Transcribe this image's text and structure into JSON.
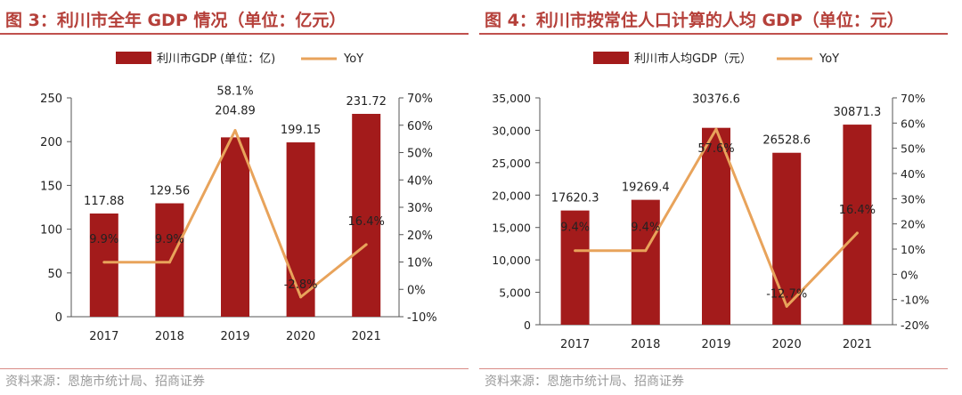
{
  "colors": {
    "bar": "#a31b1b",
    "line": "#e8a35b",
    "title": "#b5403a",
    "axis": "#333333"
  },
  "chart_data": [
    {
      "type": "bar",
      "figure_title": "图 3：利川市全年 GDP 情况（单位：亿元）",
      "legend": {
        "bar": "利川市GDP (单位：亿)",
        "line": "YoY",
        "position": "top-center"
      },
      "categories": [
        "2017",
        "2018",
        "2019",
        "2020",
        "2021"
      ],
      "series": [
        {
          "name": "利川市GDP (单位：亿)",
          "kind": "bar",
          "axis": "left",
          "values": [
            117.88,
            129.56,
            204.89,
            199.15,
            231.72
          ],
          "labels": [
            "117.88",
            "129.56",
            "204.89",
            "199.15",
            "231.72"
          ]
        },
        {
          "name": "YoY",
          "kind": "line",
          "axis": "right",
          "values": [
            9.9,
            9.9,
            58.1,
            -2.8,
            16.4
          ],
          "labels": [
            "9.9%",
            "9.9%",
            "58.1%",
            "-2.8%",
            "16.4%"
          ]
        }
      ],
      "y_left": {
        "min": 0,
        "max": 250,
        "ticks": [
          "0",
          "50",
          "100",
          "150",
          "200",
          "250"
        ]
      },
      "y_right": {
        "min": -10,
        "max": 70,
        "ticks": [
          "-10%",
          "0%",
          "10%",
          "20%",
          "30%",
          "40%",
          "50%",
          "60%",
          "70%"
        ]
      },
      "source": "资料来源：恩施市统计局、招商证券"
    },
    {
      "type": "bar",
      "figure_title": "图 4：利川市按常住人口计算的人均 GDP（单位：元）",
      "legend": {
        "bar": "利川市人均GDP（元）",
        "line": "YoY",
        "position": "top-center"
      },
      "categories": [
        "2017",
        "2018",
        "2019",
        "2020",
        "2021"
      ],
      "series": [
        {
          "name": "利川市人均GDP（元）",
          "kind": "bar",
          "axis": "left",
          "values": [
            17620.3,
            19269.4,
            30376.6,
            26528.6,
            30871.3
          ],
          "labels": [
            "17620.3",
            "19269.4",
            "30376.6",
            "26528.6",
            "30871.3"
          ]
        },
        {
          "name": "YoY",
          "kind": "line",
          "axis": "right",
          "values": [
            9.4,
            9.4,
            57.6,
            -12.7,
            16.4
          ],
          "labels": [
            "9.4%",
            "9.4%",
            "57.6%",
            "-12.7%",
            "16.4%"
          ]
        }
      ],
      "y_left": {
        "min": 0,
        "max": 35000,
        "ticks": [
          "0",
          "5,000",
          "10,000",
          "15,000",
          "20,000",
          "25,000",
          "30,000",
          "35,000"
        ]
      },
      "y_right": {
        "min": -20,
        "max": 70,
        "ticks": [
          "-20%",
          "-10%",
          "0%",
          "10%",
          "20%",
          "30%",
          "40%",
          "50%",
          "60%",
          "70%"
        ]
      },
      "source": "资料来源：恩施市统计局、招商证券"
    }
  ]
}
